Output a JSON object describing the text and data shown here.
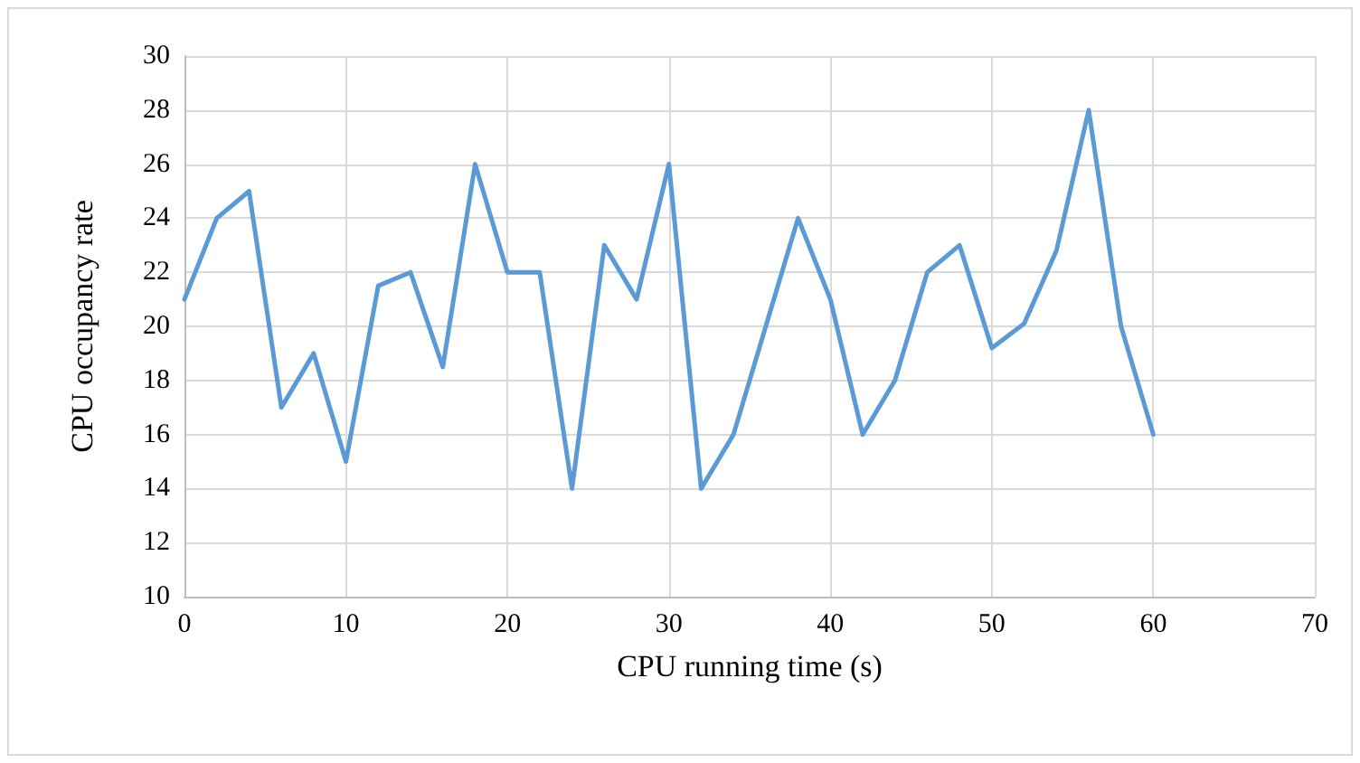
{
  "chart_data": {
    "type": "line",
    "xlabel": "CPU running time (s)",
    "ylabel": "CPU occupancy rate",
    "x": [
      0,
      2,
      4,
      6,
      8,
      10,
      12,
      14,
      16,
      18,
      20,
      22,
      24,
      26,
      28,
      30,
      32,
      34,
      36,
      38,
      40,
      42,
      44,
      46,
      48,
      50,
      52,
      54,
      56,
      58,
      60
    ],
    "series": [
      {
        "color": "#5b9bd5",
        "values": [
          21,
          24,
          25,
          17,
          19,
          15,
          21.5,
          22,
          18.5,
          26,
          22,
          22,
          14,
          23,
          21,
          26,
          14,
          16,
          20,
          24,
          21,
          16,
          18,
          22,
          23,
          19.2,
          20.1,
          22.8,
          28,
          20,
          16
        ]
      }
    ],
    "xlim": [
      0,
      70
    ],
    "xticks": [
      0,
      10,
      20,
      30,
      40,
      50,
      60,
      70
    ],
    "ylim": [
      10,
      30
    ],
    "yticks": [
      10,
      12,
      14,
      16,
      18,
      20,
      22,
      24,
      26,
      28,
      30
    ],
    "grid": true,
    "marker": "none",
    "line_style": "solid"
  }
}
